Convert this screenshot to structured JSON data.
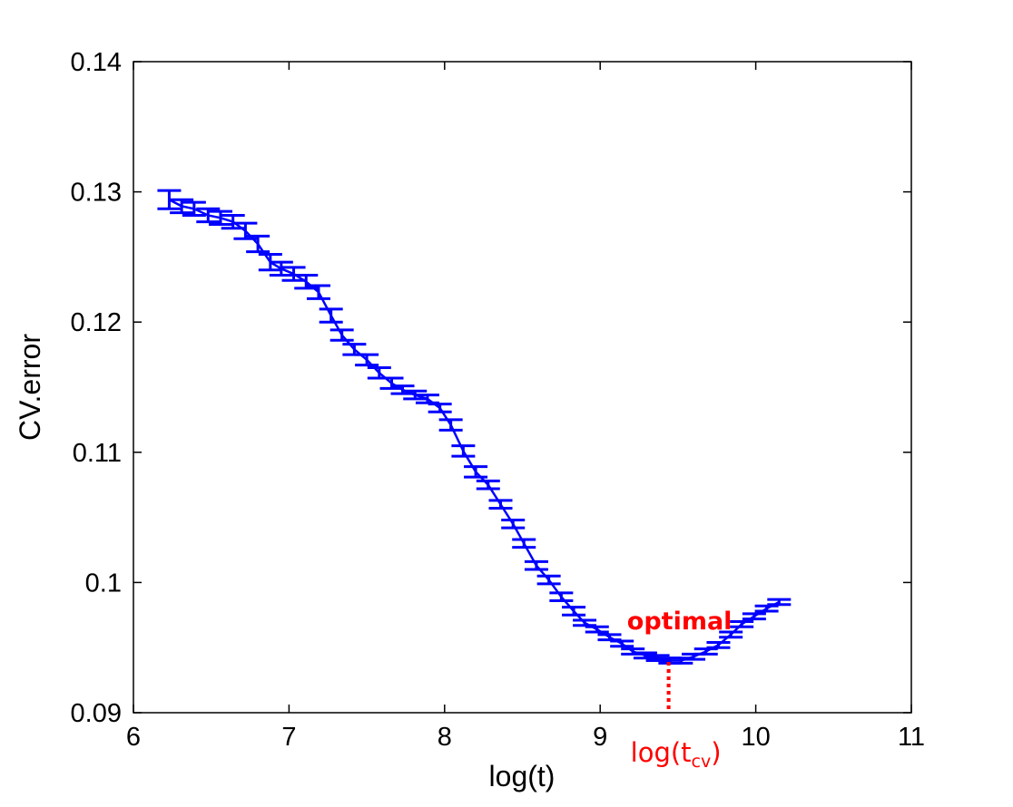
{
  "chart_data": {
    "type": "line",
    "xlabel": "log(t)",
    "ylabel": "CV.error",
    "xlim": [
      6,
      11
    ],
    "ylim": [
      0.09,
      0.14
    ],
    "xticks": [
      "6",
      "7",
      "8",
      "9",
      "10",
      "11"
    ],
    "yticks": [
      "0.09",
      "0.1",
      "0.11",
      "0.12",
      "0.13",
      "0.14"
    ],
    "grid": false,
    "series_color": "#0000ff",
    "series": [
      {
        "x": [
          6.23,
          6.31,
          6.39,
          6.48,
          6.56,
          6.64,
          6.72,
          6.8,
          6.88,
          6.95,
          7.03,
          7.11,
          7.19,
          7.27,
          7.34,
          7.42,
          7.5,
          7.58,
          7.66,
          7.73,
          7.81,
          7.89,
          7.97,
          8.04,
          8.12,
          8.2,
          8.28,
          8.36,
          8.44,
          8.51,
          8.59,
          8.67,
          8.75,
          8.83,
          8.9,
          8.98,
          9.06,
          9.14,
          9.21,
          9.29,
          9.37,
          9.45,
          9.52,
          9.6,
          9.68,
          9.76,
          9.84,
          9.91,
          9.99,
          10.07,
          10.15
        ],
        "y": [
          0.1294,
          0.1289,
          0.1287,
          0.1282,
          0.128,
          0.1277,
          0.127,
          0.126,
          0.1246,
          0.1241,
          0.1237,
          0.1231,
          0.1223,
          0.1205,
          0.119,
          0.1179,
          0.1171,
          0.1161,
          0.1153,
          0.1148,
          0.1144,
          0.1141,
          0.1134,
          0.1121,
          0.1101,
          0.1085,
          0.1075,
          0.106,
          0.1045,
          0.103,
          0.1013,
          0.1002,
          0.0989,
          0.0978,
          0.0969,
          0.0964,
          0.0958,
          0.0953,
          0.0947,
          0.0944,
          0.0942,
          0.094,
          0.094,
          0.0943,
          0.0947,
          0.0952,
          0.096,
          0.0968,
          0.0974,
          0.098,
          0.0985
        ],
        "error": [
          0.0007,
          0.0005,
          0.0005,
          0.0005,
          0.0005,
          0.0005,
          0.0006,
          0.0006,
          0.0006,
          0.0005,
          0.0005,
          0.0005,
          0.0005,
          0.0005,
          0.0004,
          0.0004,
          0.0004,
          0.0004,
          0.0004,
          0.0003,
          0.0003,
          0.0003,
          0.0003,
          0.0004,
          0.0004,
          0.0004,
          0.0003,
          0.0003,
          0.0003,
          0.0003,
          0.0003,
          0.0003,
          0.0003,
          0.0003,
          0.0002,
          0.0002,
          0.0002,
          0.0002,
          0.0002,
          0.0002,
          0.0002,
          0.0002,
          0.0002,
          0.0002,
          0.0002,
          0.0002,
          0.0002,
          0.0002,
          0.0002,
          0.0002,
          0.0002
        ]
      }
    ],
    "annotations": {
      "optimal_label": "optimal",
      "optimal_x": 9.44,
      "marker_label_main": "log(t",
      "marker_label_sub": "cv",
      "marker_label_close": ")",
      "color": "#ff0000"
    }
  }
}
